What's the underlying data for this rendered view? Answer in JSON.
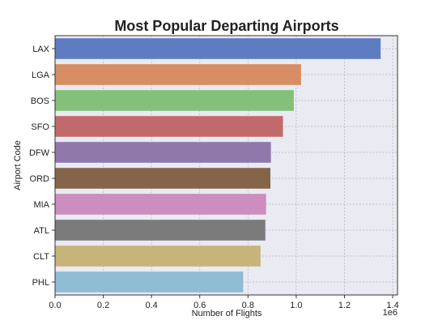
{
  "chart_data": {
    "type": "bar",
    "orientation": "horizontal",
    "title": "Most Popular Departing Airports",
    "xlabel": "Number of Flights",
    "ylabel": "Airport Code",
    "x_scale_label": "1e6",
    "xlim": [
      0,
      1.42
    ],
    "x_ticks": [
      0.0,
      0.2,
      0.4,
      0.6,
      0.8,
      1.0,
      1.2,
      1.4
    ],
    "x_tick_labels": [
      "0.0",
      "0.2",
      "0.4",
      "0.6",
      "0.8",
      "1.0",
      "1.2",
      "1.4"
    ],
    "grid": true,
    "categories": [
      "LAX",
      "LGA",
      "BOS",
      "SFO",
      "DFW",
      "ORD",
      "MIA",
      "ATL",
      "CLT",
      "PHL"
    ],
    "values": [
      1.35,
      1.02,
      0.99,
      0.945,
      0.895,
      0.893,
      0.875,
      0.872,
      0.852,
      0.78
    ],
    "colors": [
      "#5e7cc2",
      "#d88d62",
      "#84c07a",
      "#c26a6b",
      "#8f78ab",
      "#84654a",
      "#cc8dbf",
      "#7b7b7b",
      "#c6b47b",
      "#90bcd4"
    ]
  }
}
